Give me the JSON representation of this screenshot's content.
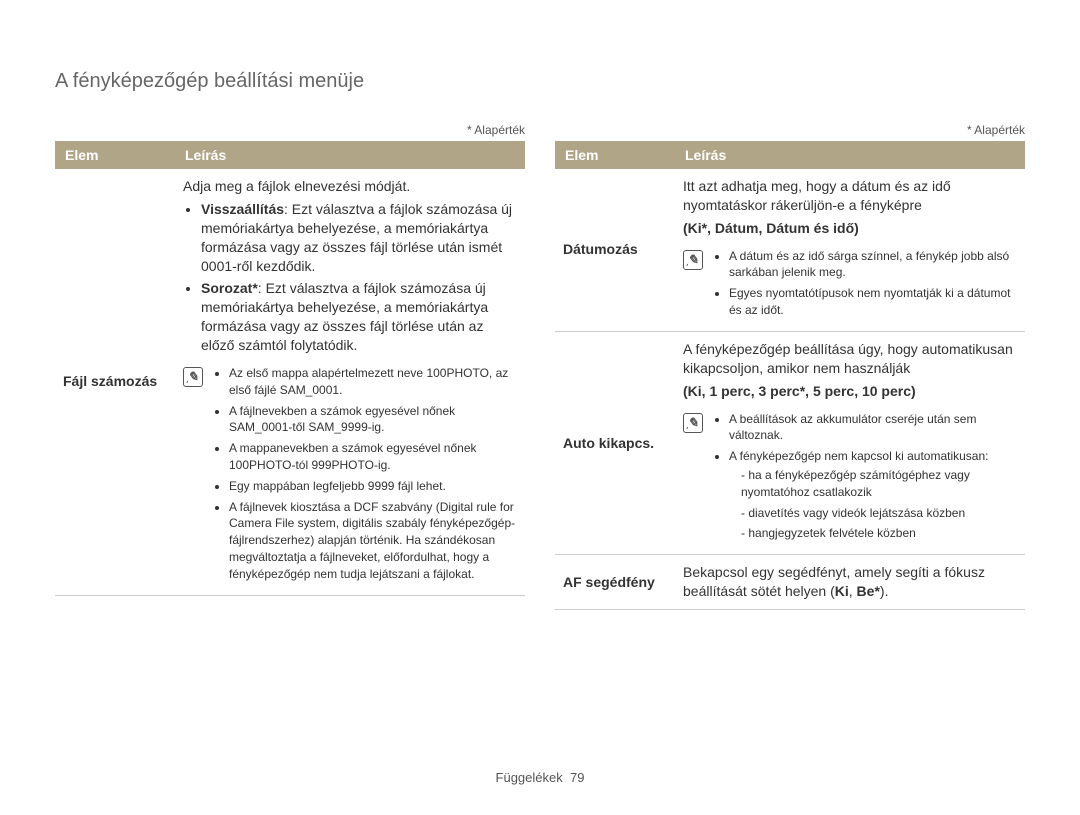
{
  "page": {
    "title": "A fényképezőgép beállítási menüje",
    "default_note": "* Alapérték",
    "footer_label": "Függelékek",
    "footer_page": "79",
    "table_headers": {
      "item": "Elem",
      "desc": "Leírás"
    }
  },
  "left": {
    "file_numbering": {
      "label": "Fájl számozás",
      "intro": "Adja meg a fájlok elnevezési módját.",
      "reset_bold": "Visszaállítás",
      "reset_text": ": Ezt választva a fájlok számozása új memóriakártya behelyezése, a memóriakártya formázása vagy az összes fájl törlése után ismét 0001-ről kezdődik.",
      "series_bold": "Sorozat*",
      "series_text": ": Ezt választva a fájlok számozása új memóriakártya behelyezése, a memóriakártya formázása vagy az összes fájl törlése után az előző számtól folytatódik.",
      "notes": {
        "n1": "Az első mappa alapértelmezett neve 100PHOTO, az első fájlé SAM_0001.",
        "n2": "A fájlnevekben a számok egyesével nőnek SAM_0001-től SAM_9999-ig.",
        "n3": "A mappanevekben a számok egyesével nőnek 100PHOTO-tól 999PHOTO-ig.",
        "n4": "Egy mappában legfeljebb 9999 fájl lehet.",
        "n5": "A fájlnevek kiosztása a DCF szabvány (Digital rule for Camera File system, digitális szabály fényképezőgép-fájlrendszerhez) alapján történik. Ha szándékosan megváltoztatja a fájlneveket, előfordulhat, hogy a fényképezőgép nem tudja lejátszani a fájlokat."
      }
    }
  },
  "right": {
    "imprint": {
      "label": "Dátumozás",
      "intro": "Itt azt adhatja meg, hogy a dátum és az idő nyomtatáskor rákerüljön-e a fényképre",
      "options": "(Ki*, Dátum, Dátum és idő)",
      "notes": {
        "n1": "A dátum és az idő sárga színnel, a fénykép jobb alsó sarkában jelenik meg.",
        "n2": "Egyes nyomtatótípusok nem nyomtatják ki a dátumot és az időt."
      }
    },
    "autopower": {
      "label": "Auto kikapcs.",
      "intro": "A fényképezőgép beállítása úgy, hogy automatikusan kikapcsoljon, amikor nem használják",
      "options": "(Ki, 1 perc, 3 perc*, 5 perc, 10 perc)",
      "notes": {
        "n1": "A beállítások az akkumulátor cseréje után sem változnak.",
        "n2": "A fényképezőgép nem kapcsol ki automatikusan:",
        "sub1": "ha a fényképezőgép számítógéphez vagy nyomtatóhoz csatlakozik",
        "sub2": "diavetítés vagy videók lejátszása közben",
        "sub3": "hangjegyzetek felvétele közben"
      }
    },
    "aflamp": {
      "label": "AF segédfény",
      "text_a": "Bekapcsol egy segédfényt, amely segíti a fókusz beállítását sötét helyen (",
      "text_b": "Ki",
      "text_c": ", ",
      "text_d": "Be*",
      "text_e": ")."
    }
  }
}
